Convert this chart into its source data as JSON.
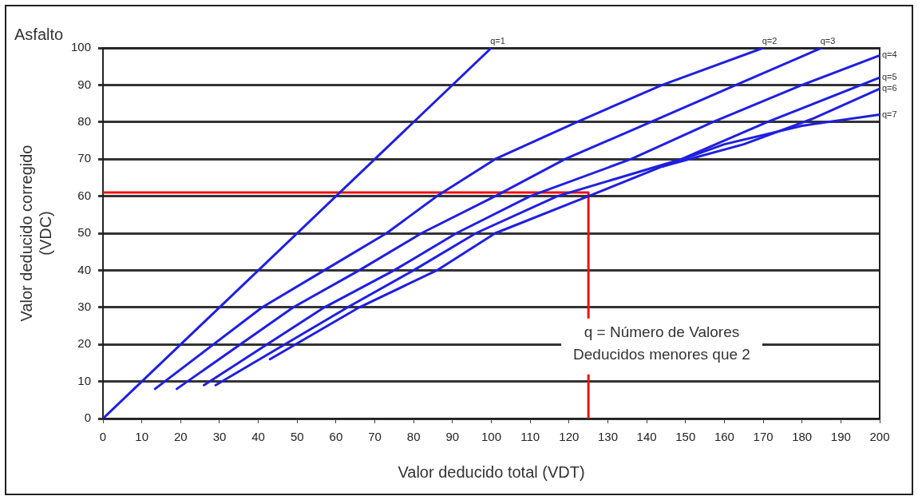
{
  "chart_data": {
    "type": "line",
    "title": "Asfalto",
    "xlabel": "Valor deducido total (VDT)",
    "ylabel": "Valor deducido corregido\n(VDC)",
    "xlim": [
      0,
      200
    ],
    "ylim": [
      0,
      100
    ],
    "xticks": [
      0,
      10,
      20,
      30,
      40,
      50,
      60,
      70,
      80,
      90,
      100,
      110,
      120,
      130,
      140,
      150,
      160,
      170,
      180,
      190,
      200
    ],
    "yticks": [
      0,
      10,
      20,
      30,
      40,
      50,
      60,
      70,
      80,
      90,
      100
    ],
    "grid": "y",
    "legend": false,
    "marker": "none",
    "line_style": "solid",
    "series": [
      {
        "name": "q=1",
        "color": "#1f1fe0",
        "x": [
          0,
          100
        ],
        "values": [
          0,
          100
        ]
      },
      {
        "name": "q=2",
        "color": "#1f1fe0",
        "x": [
          13.4,
          41,
          57,
          73,
          86,
          101,
          122,
          144,
          170
        ],
        "values": [
          8,
          30,
          40,
          50,
          60,
          70,
          80,
          90,
          100
        ]
      },
      {
        "name": "q=3",
        "color": "#1f1fe0",
        "x": [
          19,
          49,
          66,
          82,
          101,
          119,
          141,
          163,
          185
        ],
        "values": [
          8,
          30,
          40,
          50,
          60,
          70,
          80,
          90,
          100
        ]
      },
      {
        "name": "q=4",
        "color": "#1f1fe0",
        "x": [
          26,
          57,
          75,
          91,
          110,
          136,
          157,
          180,
          200
        ],
        "values": [
          9,
          30,
          40,
          50,
          60,
          70,
          80,
          90,
          98
        ]
      },
      {
        "name": "q=5",
        "color": "#1f1fe0",
        "x": [
          29,
          63,
          80,
          96,
          117,
          149,
          171,
          200
        ],
        "values": [
          9,
          30,
          40,
          50,
          60,
          70,
          80,
          92
        ]
      },
      {
        "name": "q=6",
        "color": "#1f1fe0",
        "x": [
          43,
          66,
          86,
          101,
          125,
          144,
          165,
          183,
          200
        ],
        "values": [
          16,
          30,
          40,
          50,
          60,
          68,
          74,
          81,
          89
        ]
      },
      {
        "name": "q=7",
        "color": "#1f1fe0",
        "x": [
          144,
          160,
          180,
          200
        ],
        "values": [
          68,
          74,
          79,
          82
        ]
      },
      {
        "color": "#ee1111",
        "x": [
          125,
          125,
          0
        ],
        "values": [
          0,
          61,
          61
        ]
      }
    ],
    "annotations": [
      "q = Número de Valores\nDeducidos menores que 2"
    ]
  }
}
